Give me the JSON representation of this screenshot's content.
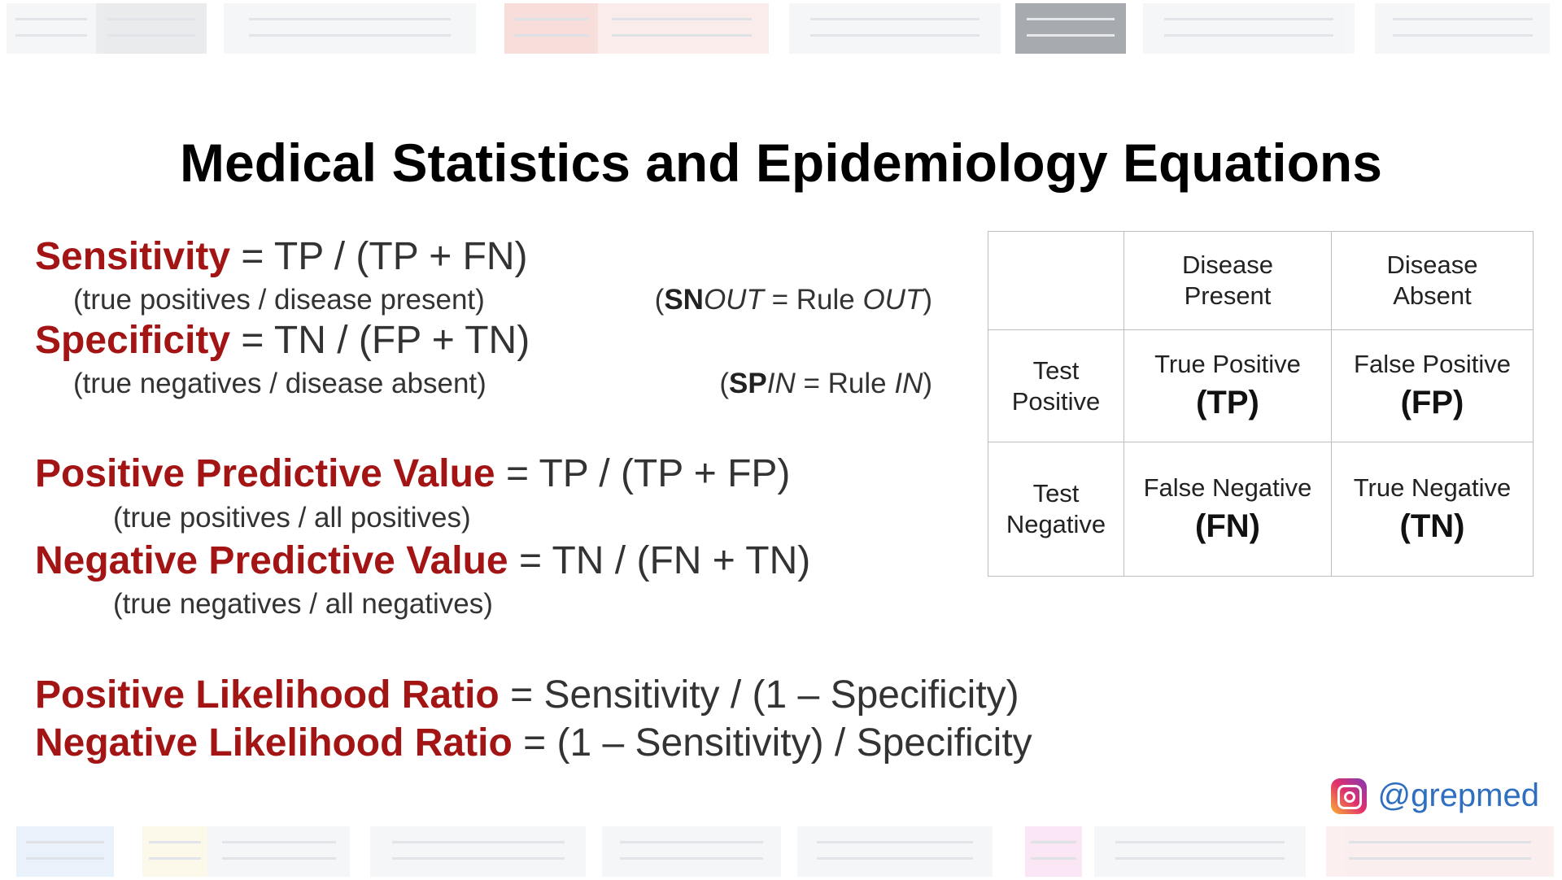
{
  "title": "Medical Statistics and Epidemiology Equations",
  "equations": {
    "sensitivity": {
      "term": "Sensitivity",
      "formula": " = TP / (TP + FN)",
      "note": "(true positives / disease present)"
    },
    "specificity": {
      "term": "Specificity",
      "formula": " = TN / (FP + TN)",
      "note": "(true negatives / disease absent)"
    },
    "ppv": {
      "term": "Positive Predictive Value",
      "formula": " = TP / (TP + FP)",
      "note": "(true positives / all positives)"
    },
    "npv": {
      "term": "Negative Predictive Value",
      "formula": " = TN / (FN + TN)",
      "note": "(true negatives / all negatives)"
    },
    "plr": {
      "term": "Positive Likelihood Ratio",
      "formula": " = Sensitivity / (1 – Specificity)"
    },
    "nlr": {
      "term": "Negative Likelihood Ratio",
      "formula": " = (1 – Sensitivity) / Specificity"
    }
  },
  "mnemonics": {
    "snout": {
      "open": "(",
      "bold": "SN",
      "italic1": "OUT",
      "mid": " = Rule ",
      "italic2": "OUT",
      "close": ")"
    },
    "spin": {
      "open": "(",
      "bold": "SP",
      "italic1": "IN",
      "mid": " = Rule ",
      "italic2": "IN",
      "close": ")"
    }
  },
  "table": {
    "col_headers": [
      "Disease Present",
      "Disease Absent"
    ],
    "row_headers": [
      "Test Positive",
      "Test Negative"
    ],
    "cells": {
      "tp": {
        "label": "True Positive",
        "abbr": "(TP)"
      },
      "fp": {
        "label": "False Positive",
        "abbr": "(FP)"
      },
      "fn": {
        "label": "False Negative",
        "abbr": "(FN)"
      },
      "tn": {
        "label": "True Negative",
        "abbr": "(TN)"
      }
    }
  },
  "social": {
    "icon": "instagram-icon",
    "handle": "@grepmed"
  }
}
